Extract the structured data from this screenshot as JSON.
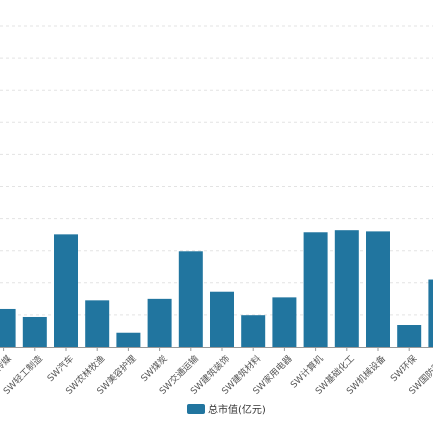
{
  "chart_data": {
    "type": "bar",
    "categories": [
      "SW传媒",
      "SW轻工制造",
      "SW汽车",
      "SW农林牧渔",
      "SW美容护理",
      "SW煤炭",
      "SW交通运输",
      "SW建筑装饰",
      "SW建筑材料",
      "SW家用电器",
      "SW计算机",
      "SW基础化工",
      "SW机械设备",
      "SW环保",
      "SW国防军工"
    ],
    "series": [
      {
        "name": "总市值(亿元)",
        "values": [
          1280,
          1010,
          3790,
          1570,
          480,
          1620,
          3220,
          1860,
          1070,
          1670,
          3860,
          3930,
          3890,
          740,
          2270
        ]
      }
    ],
    "ylim": [
      0,
      10800
    ],
    "grid": true,
    "legend_position": "bottom",
    "colors": {
      "bar": "#21759f",
      "grid": "#e3e3e3",
      "axis": "#999999"
    }
  }
}
